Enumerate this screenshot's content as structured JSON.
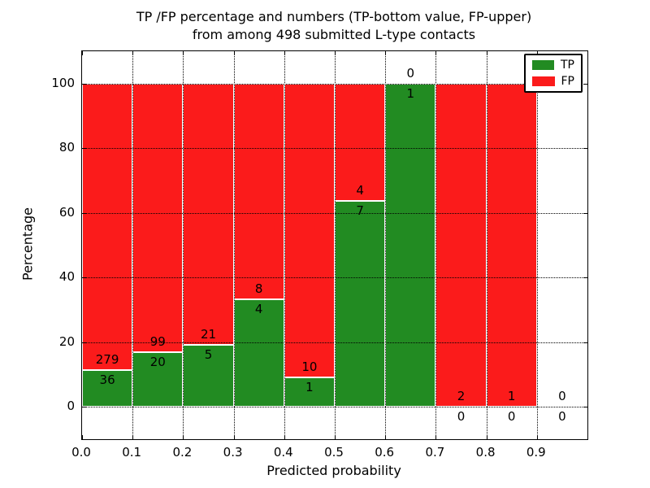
{
  "title": {
    "line1": "TP /FP percentage and numbers (TP-bottom value, FP-upper)",
    "line2": "from among 498 submitted L-type contacts"
  },
  "axes": {
    "xlabel": "Predicted probability",
    "ylabel": "Percentage"
  },
  "legend": {
    "position": "upper right",
    "entries": [
      {
        "label": "TP",
        "color": "#228B22"
      },
      {
        "label": "FP",
        "color": "#FB1B1B"
      }
    ]
  },
  "colors": {
    "tp_green": "#228B22",
    "fp_red": "#FB1B1B",
    "grid": "#000000",
    "bar_edge": "#ffffff",
    "background": "#ffffff"
  },
  "chart_data": {
    "type": "bar",
    "stacked": true,
    "title": "TP /FP percentage and numbers (TP-bottom value, FP-upper)\nfrom among 498 submitted L-type contacts",
    "xlabel": "Predicted probability",
    "ylabel": "Percentage",
    "xlim": [
      0.0,
      1.0
    ],
    "ylim": [
      -10,
      110
    ],
    "bin_width": 0.1,
    "xtick_labels": [
      "0.0",
      "0.1",
      "0.2",
      "0.3",
      "0.4",
      "0.5",
      "0.6",
      "0.7",
      "0.8",
      "0.9"
    ],
    "ytick_values": [
      0,
      20,
      40,
      60,
      80,
      100
    ],
    "grid": true,
    "categories": [
      "0.0-0.1",
      "0.1-0.2",
      "0.2-0.3",
      "0.3-0.4",
      "0.4-0.5",
      "0.5-0.6",
      "0.6-0.7",
      "0.7-0.8",
      "0.8-0.9",
      "0.9-1.0"
    ],
    "series": [
      {
        "name": "TP",
        "color": "#228B22",
        "counts": [
          36,
          20,
          5,
          4,
          1,
          7,
          1,
          0,
          0,
          0
        ]
      },
      {
        "name": "FP",
        "color": "#FB1B1B",
        "counts": [
          279,
          99,
          21,
          8,
          10,
          4,
          0,
          2,
          1,
          0
        ]
      }
    ],
    "tp_percent_of_bin": [
      11.43,
      16.81,
      19.23,
      33.33,
      9.09,
      63.64,
      100.0,
      0.0,
      0.0,
      null
    ],
    "total_submitted": 498,
    "label_rule": "FP count above green/red boundary, TP count below boundary"
  }
}
